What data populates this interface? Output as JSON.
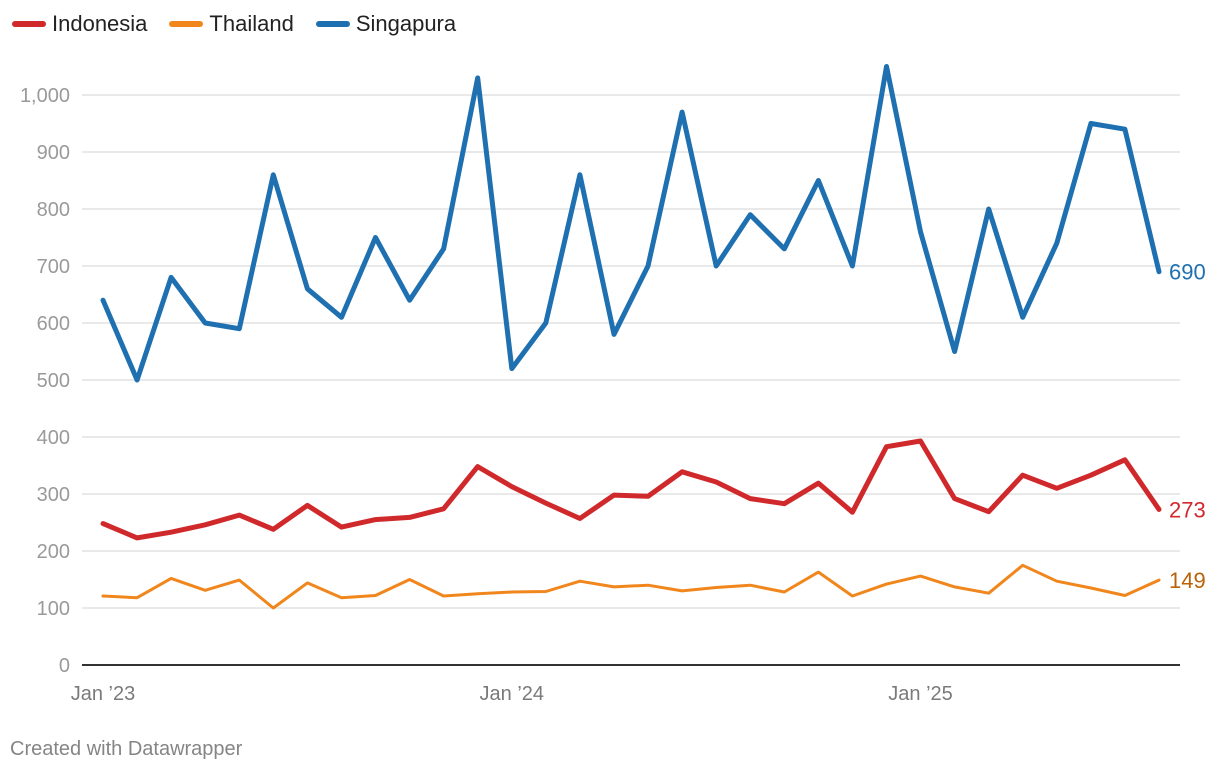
{
  "chart_data": {
    "type": "line",
    "title": "",
    "xlabel": "",
    "ylabel": "",
    "ylim": [
      0,
      1080
    ],
    "yticks": [
      0,
      100,
      200,
      300,
      400,
      500,
      600,
      700,
      800,
      900,
      1000
    ],
    "ytick_labels": [
      "0",
      "100",
      "200",
      "300",
      "400",
      "500",
      "600",
      "700",
      "800",
      "900",
      "1,000"
    ],
    "xticks": [
      {
        "index": 0,
        "label": "Jan ’23"
      },
      {
        "index": 12,
        "label": "Jan ’24"
      },
      {
        "index": 24,
        "label": "Jan ’25"
      }
    ],
    "grid": true,
    "legend_position": "top-left",
    "x": [
      "2023-01",
      "2023-02",
      "2023-03",
      "2023-04",
      "2023-05",
      "2023-06",
      "2023-07",
      "2023-08",
      "2023-09",
      "2023-10",
      "2023-11",
      "2023-12",
      "2024-01",
      "2024-02",
      "2024-03",
      "2024-04",
      "2024-05",
      "2024-06",
      "2024-07",
      "2024-08",
      "2024-09",
      "2024-10",
      "2024-11",
      "2024-12",
      "2025-01",
      "2025-02",
      "2025-03",
      "2025-04",
      "2025-05",
      "2025-06",
      "2025-07",
      "2025-08"
    ],
    "series": [
      {
        "name": "Indonesia",
        "color": "#d0292c",
        "width": "thick",
        "end_label": "273",
        "values": [
          248,
          223,
          233,
          246,
          263,
          238,
          280,
          242,
          255,
          259,
          274,
          348,
          313,
          284,
          257,
          298,
          296,
          339,
          321,
          292,
          283,
          319,
          268,
          383,
          393,
          292,
          269,
          333,
          310,
          333,
          360,
          273
        ]
      },
      {
        "name": "Thailand",
        "color": "#f0861c",
        "width": "thin",
        "end_label": "149",
        "values": [
          121,
          118,
          152,
          131,
          149,
          100,
          144,
          118,
          122,
          150,
          121,
          125,
          128,
          129,
          147,
          137,
          140,
          130,
          136,
          140,
          128,
          163,
          121,
          142,
          156,
          137,
          126,
          175,
          147,
          135,
          122,
          149
        ]
      },
      {
        "name": "Singapura",
        "color": "#1f70b0",
        "width": "thick",
        "end_label": "690",
        "values": [
          640,
          500,
          680,
          600,
          590,
          860,
          660,
          610,
          750,
          640,
          730,
          1030,
          520,
          600,
          860,
          580,
          700,
          970,
          700,
          790,
          730,
          850,
          700,
          1050,
          760,
          550,
          800,
          610,
          740,
          950,
          940,
          690
        ]
      }
    ],
    "end_label_colors": [
      "#d0292c",
      "#b96208",
      "#1f70b0"
    ]
  },
  "credit": "Created with Datawrapper"
}
